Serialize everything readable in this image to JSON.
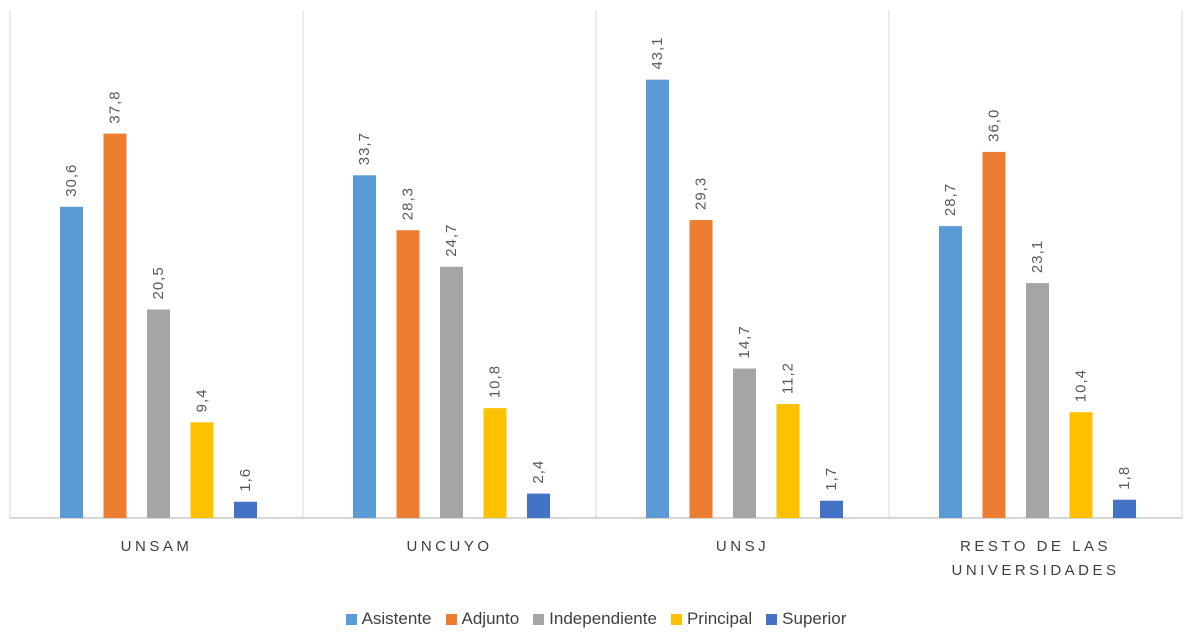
{
  "chart_data": {
    "type": "bar",
    "categories": [
      [
        "UNSAM"
      ],
      [
        "UNCUYO"
      ],
      [
        "UNSJ"
      ],
      [
        "RESTO DE LAS",
        "UNIVERSIDADES"
      ]
    ],
    "series": [
      {
        "name": "Asistente",
        "color": "#5B9BD5",
        "values": [
          30.6,
          33.7,
          43.1,
          28.7
        ],
        "labels": [
          "30,6",
          "33,7",
          "43,1",
          "28,7"
        ]
      },
      {
        "name": "Adjunto",
        "color": "#ED7D31",
        "values": [
          37.8,
          28.3,
          29.3,
          36.0
        ],
        "labels": [
          "37,8",
          "28,3",
          "29,3",
          "36,0"
        ]
      },
      {
        "name": "Independiente",
        "color": "#A5A5A5",
        "values": [
          20.5,
          24.7,
          14.7,
          23.1
        ],
        "labels": [
          "20,5",
          "24,7",
          "14,7",
          "23,1"
        ]
      },
      {
        "name": "Principal",
        "color": "#FFC000",
        "values": [
          9.4,
          10.8,
          11.2,
          10.4
        ],
        "labels": [
          "9,4",
          "10,8",
          "11,2",
          "10,4"
        ]
      },
      {
        "name": "Superior",
        "color": "#4472C4",
        "values": [
          1.6,
          2.4,
          1.7,
          1.8
        ],
        "labels": [
          "1,6",
          "2,4",
          "1,7",
          "1,8"
        ]
      }
    ],
    "ylim": [
      0,
      46
    ],
    "legend": "bottom",
    "grid": false
  }
}
